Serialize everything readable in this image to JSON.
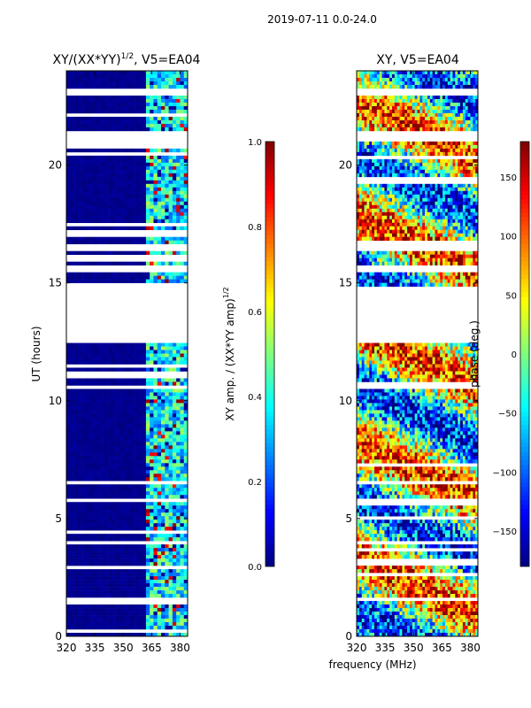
{
  "suptitle": "2019-07-11 0.0-24.0",
  "colors": {
    "no_data": "#ffffff",
    "jet": [
      "#00007f",
      "#0000ff",
      "#007fff",
      "#00ffff",
      "#7fff7f",
      "#ffff00",
      "#ff7f00",
      "#ff0000",
      "#7f0000"
    ]
  },
  "chart_data": [
    {
      "type": "heatmap",
      "panel": "left",
      "title": "XY/(XX*YY)",
      "title_superscript": "1/2",
      "title_suffix": ", V5=EA04",
      "xlabel": "",
      "ylabel": "UT (hours)",
      "xlim": [
        320,
        384
      ],
      "ylim": [
        0,
        24
      ],
      "xticks": [
        320,
        335,
        350,
        365,
        380
      ],
      "yticks": [
        0,
        5,
        10,
        15,
        20
      ],
      "grid": false,
      "colorbar": {
        "label": "XY amp. / (XX*YY amp)",
        "label_superscript": "1/2",
        "range": [
          0.0,
          1.0
        ],
        "ticks": [
          "0.0",
          "0.2",
          "0.4",
          "0.6",
          "0.8",
          "1.0"
        ],
        "tick_values": [
          0.0,
          0.2,
          0.4,
          0.6,
          0.8,
          1.0
        ]
      },
      "no_data_gaps_hours": [
        [
          12.4,
          15.0
        ],
        [
          15.4,
          15.8
        ],
        [
          16.3,
          16.7
        ],
        [
          17.0,
          17.2
        ],
        [
          21.0,
          21.5
        ],
        [
          23.0,
          23.2
        ],
        [
          11.0,
          11.1
        ],
        [
          7.3,
          7.4
        ],
        [
          4.3,
          4.4
        ],
        [
          1.4,
          1.6
        ]
      ],
      "typical_values": {
        "below_362_MHz": 0.0,
        "362_to_382_MHz": 0.35
      }
    },
    {
      "type": "heatmap",
      "panel": "right",
      "title": "XY, V5=EA04",
      "xlabel": "frequency (MHz)",
      "ylabel": "",
      "xlim": [
        320,
        384
      ],
      "ylim": [
        0,
        24
      ],
      "xticks": [
        320,
        335,
        350,
        365,
        380
      ],
      "yticks": [
        0,
        5,
        10,
        15,
        20
      ],
      "grid": false,
      "colorbar": {
        "label": "phase (deg.)",
        "range": [
          -180,
          180
        ],
        "ticks": [
          "−150",
          "−100",
          "−50",
          "0",
          "50",
          "100",
          "150"
        ],
        "tick_values": [
          -150,
          -100,
          -50,
          0,
          50,
          100,
          150
        ]
      },
      "no_data_gaps_hours": [
        [
          12.4,
          14.9
        ],
        [
          15.5,
          15.7
        ],
        [
          16.4,
          16.6
        ],
        [
          21.0,
          21.4
        ],
        [
          23.0,
          23.2
        ]
      ],
      "typical_values": {
        "range": [
          -180,
          180
        ]
      }
    }
  ]
}
